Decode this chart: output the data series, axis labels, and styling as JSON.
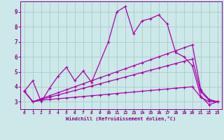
{
  "background_color": "#cce8e8",
  "line_color": "#aa00aa",
  "grid_color": "#aacccc",
  "xlabel": "Windchill (Refroidissement éolien,°C)",
  "xlabel_color": "#880088",
  "tick_color": "#880088",
  "xlim": [
    -0.5,
    23.5
  ],
  "ylim": [
    2.5,
    9.7
  ],
  "xticks": [
    0,
    1,
    2,
    3,
    4,
    5,
    6,
    7,
    8,
    9,
    10,
    11,
    12,
    13,
    14,
    15,
    16,
    17,
    18,
    19,
    20,
    21,
    22,
    23
  ],
  "yticks": [
    3,
    4,
    5,
    6,
    7,
    8,
    9
  ],
  "lines": [
    {
      "x": [
        0,
        1,
        2,
        3,
        4,
        5,
        6,
        7,
        8,
        10,
        11,
        12,
        13,
        14,
        15,
        16,
        17,
        18,
        19,
        20,
        21,
        22,
        23
      ],
      "y": [
        3.7,
        4.4,
        3.0,
        3.9,
        4.7,
        5.3,
        4.4,
        5.05,
        4.3,
        7.0,
        9.0,
        9.35,
        7.55,
        8.4,
        8.55,
        8.8,
        8.2,
        6.3,
        6.0,
        5.4,
        3.35,
        2.8,
        3.0
      ]
    },
    {
      "x": [
        0,
        1,
        2,
        3,
        4,
        5,
        6,
        7,
        8,
        9,
        10,
        11,
        12,
        13,
        14,
        15,
        16,
        17,
        18,
        19,
        20,
        21,
        22,
        23
      ],
      "y": [
        3.7,
        3.0,
        3.1,
        3.15,
        3.2,
        3.25,
        3.3,
        3.35,
        3.4,
        3.45,
        3.5,
        3.55,
        3.6,
        3.65,
        3.7,
        3.75,
        3.8,
        3.85,
        3.9,
        3.95,
        4.0,
        3.3,
        3.0,
        3.0
      ]
    },
    {
      "x": [
        0,
        1,
        2,
        3,
        4,
        5,
        6,
        7,
        8,
        9,
        10,
        11,
        12,
        13,
        14,
        15,
        16,
        17,
        18,
        19,
        20,
        21,
        22,
        23
      ],
      "y": [
        3.7,
        3.0,
        3.15,
        3.3,
        3.45,
        3.6,
        3.75,
        3.9,
        4.05,
        4.2,
        4.35,
        4.5,
        4.65,
        4.8,
        4.95,
        5.1,
        5.25,
        5.4,
        5.55,
        5.7,
        5.85,
        3.65,
        3.1,
        3.0
      ]
    },
    {
      "x": [
        0,
        1,
        2,
        3,
        4,
        5,
        6,
        7,
        8,
        9,
        10,
        11,
        12,
        13,
        14,
        15,
        16,
        17,
        18,
        19,
        20,
        21,
        22,
        23
      ],
      "y": [
        3.7,
        3.0,
        3.2,
        3.4,
        3.6,
        3.8,
        4.0,
        4.2,
        4.4,
        4.6,
        4.8,
        5.0,
        5.2,
        5.4,
        5.6,
        5.8,
        6.0,
        6.2,
        6.4,
        6.6,
        6.8,
        3.8,
        3.15,
        3.0
      ]
    }
  ]
}
